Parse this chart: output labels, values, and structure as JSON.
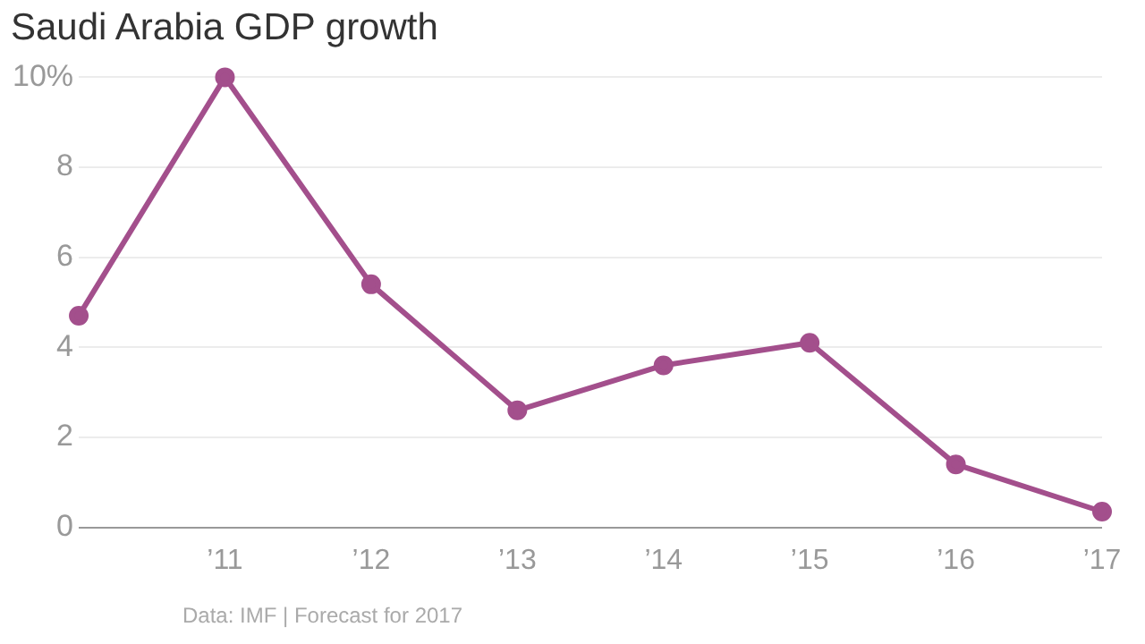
{
  "chart_data": {
    "type": "line",
    "title": "Saudi Arabia GDP growth",
    "x": [
      2010,
      2011,
      2012,
      2013,
      2014,
      2015,
      2016,
      2017
    ],
    "series": [
      {
        "color": "#a34f8c",
        "values": [
          4.7,
          10,
          5.4,
          2.6,
          3.6,
          4.1,
          1.4,
          0.35
        ]
      }
    ],
    "xlim": [
      2010,
      2017
    ],
    "xticks": [
      {
        "value": 2011,
        "label": "’11"
      },
      {
        "value": 2012,
        "label": "’12"
      },
      {
        "value": 2013,
        "label": "’13"
      },
      {
        "value": 2014,
        "label": "’14"
      },
      {
        "value": 2015,
        "label": "’15"
      },
      {
        "value": 2016,
        "label": "’16"
      },
      {
        "value": 2017,
        "label": "’17"
      }
    ],
    "ylim": [
      0,
      10
    ],
    "yticks": [
      0,
      2,
      4,
      6,
      8,
      {
        "value": 10,
        "label": "10%"
      }
    ],
    "grid": "y",
    "marker": "circle",
    "line_style": "solid",
    "legend": false,
    "annotations": [
      "Data: IMF | Forecast for 2017"
    ]
  }
}
